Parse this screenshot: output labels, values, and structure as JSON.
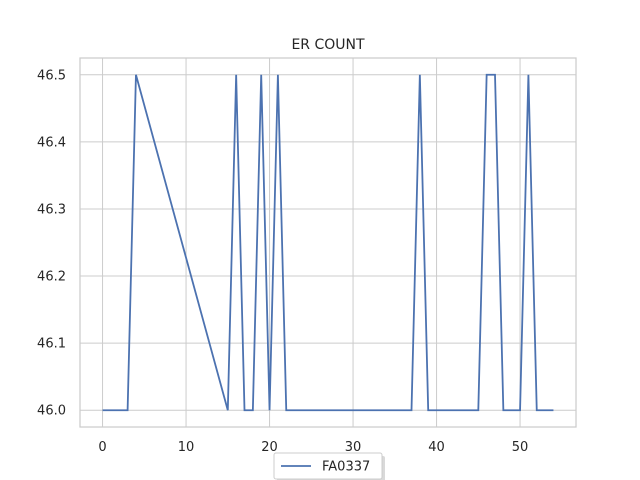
{
  "chart_data": {
    "type": "line",
    "title": "ER COUNT",
    "xlabel": "",
    "ylabel": "",
    "xlim": [
      -2.7,
      56.7
    ],
    "ylim": [
      45.975,
      46.525
    ],
    "xticks": [
      0,
      10,
      20,
      30,
      40,
      50
    ],
    "yticks": [
      46.0,
      46.1,
      46.2,
      46.3,
      46.4,
      46.5
    ],
    "ytick_labels": [
      "46.0",
      "46.1",
      "46.2",
      "46.3",
      "46.4",
      "46.5"
    ],
    "grid": true,
    "legend_position": "bottom-center",
    "series": [
      {
        "name": "FA0337",
        "color": "#4c72b0",
        "x": [
          0,
          1,
          2,
          3,
          4,
          15,
          16,
          17,
          18,
          19,
          20,
          21,
          22,
          23,
          24,
          25,
          26,
          27,
          28,
          29,
          30,
          31,
          32,
          33,
          34,
          35,
          36,
          37,
          38,
          39,
          40,
          41,
          42,
          43,
          44,
          45,
          46,
          47,
          48,
          49,
          50,
          51,
          52,
          53,
          54
        ],
        "y": [
          46.0,
          46.0,
          46.0,
          46.0,
          46.5,
          46.0,
          46.5,
          46.0,
          46.0,
          46.5,
          46.0,
          46.5,
          46.0,
          46.0,
          46.0,
          46.0,
          46.0,
          46.0,
          46.0,
          46.0,
          46.0,
          46.0,
          46.0,
          46.0,
          46.0,
          46.0,
          46.0,
          46.0,
          46.5,
          46.0,
          46.0,
          46.0,
          46.0,
          46.0,
          46.0,
          46.0,
          46.5,
          46.5,
          46.0,
          46.0,
          46.0,
          46.5,
          46.0,
          46.0,
          46.0
        ]
      }
    ]
  }
}
